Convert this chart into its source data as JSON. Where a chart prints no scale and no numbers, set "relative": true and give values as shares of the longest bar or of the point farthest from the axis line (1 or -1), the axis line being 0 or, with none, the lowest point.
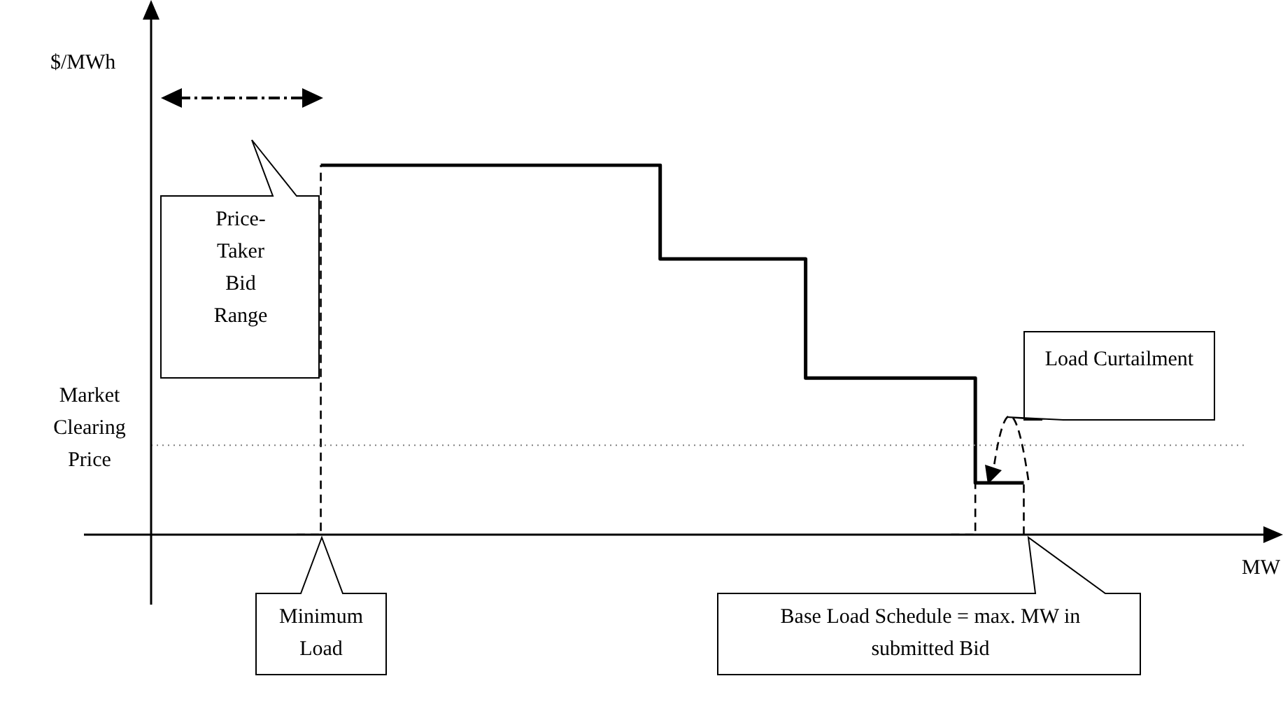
{
  "chart_data": {
    "type": "step",
    "relative": true,
    "xlabel": "MW",
    "ylabel": "$/MWh",
    "categories": [
      null,
      null,
      null,
      null,
      null,
      null,
      null,
      null,
      null,
      null,
      null,
      null,
      null,
      null,
      null,
      null,
      null,
      null,
      null,
      null,
      null,
      null,
      null,
      null,
      null,
      null,
      null,
      null,
      null,
      null,
      null,
      null,
      null,
      null,
      null,
      null,
      null,
      null,
      null,
      null,
      null,
      null,
      null,
      null,
      null,
      null,
      null
    ],
    "series": [
      {
        "color": "#000000",
        "line_style": "solid",
        "values": [
          null,
          null,
          null,
          null,
          null,
          null,
          null,
          1,
          1,
          1,
          1,
          1,
          1,
          1,
          1,
          1,
          1,
          1,
          1,
          1,
          1,
          0.746,
          0.746,
          0.746,
          0.746,
          0.746,
          0.746,
          0.424,
          0.424,
          0.424,
          0.424,
          0.424,
          0.424,
          0.424,
          0.14,
          0.14,
          0.14,
          null,
          null,
          null,
          null,
          null,
          null,
          null,
          null,
          null,
          null
        ]
      },
      {
        "color": "#000000",
        "line_style": "dashed",
        "values": [
          null,
          null,
          null,
          null,
          null,
          null,
          0,
          1,
          null,
          null,
          null,
          null,
          null,
          null,
          null,
          null,
          null,
          null,
          null,
          null,
          null,
          null,
          null,
          null,
          null,
          null,
          null,
          null,
          null,
          null,
          null,
          null,
          null,
          0,
          0.14,
          0.14,
          0,
          null,
          null,
          null,
          null,
          null,
          null,
          null,
          null,
          null,
          null
        ]
      }
    ],
    "ref_lines": [
      {
        "axis": "y",
        "value": 0.242,
        "label": "Market Clearing Price",
        "color": "#808080",
        "line_style": "dotted"
      }
    ],
    "annotations": [
      "Price-Taker Bid Range",
      "Load Curtailment",
      "Minimum Load",
      "Base Load Schedule = max. MW in submitted Bid"
    ],
    "legend": false,
    "grid": false,
    "tick_labels": false,
    "marker": "none"
  }
}
